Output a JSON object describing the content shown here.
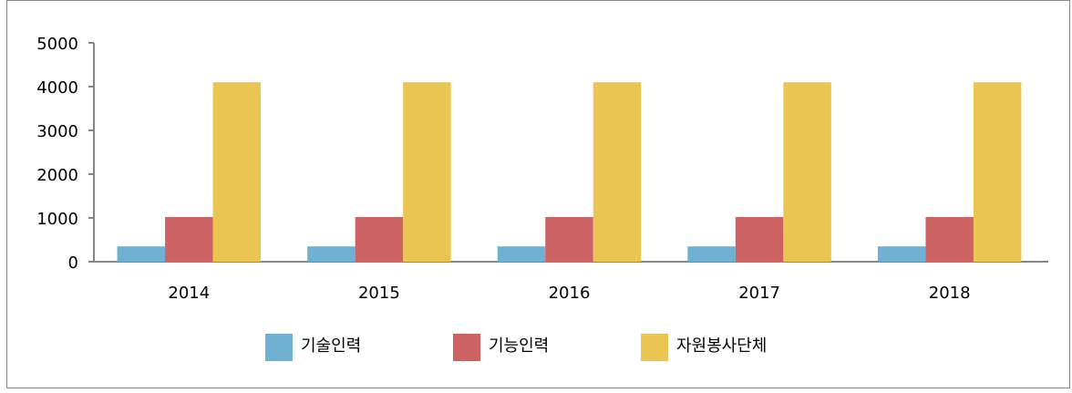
{
  "chart_data": {
    "type": "bar",
    "categories": [
      "2014",
      "2015",
      "2016",
      "2017",
      "2018"
    ],
    "series": [
      {
        "name": "기술인력",
        "color": "#6fb0d3",
        "values": [
          350,
          350,
          350,
          350,
          350
        ]
      },
      {
        "name": "기능인력",
        "color": "#cd6262",
        "values": [
          1020,
          1020,
          1020,
          1020,
          1020
        ]
      },
      {
        "name": "자원봉사단체",
        "color": "#ebc553",
        "values": [
          4100,
          4100,
          4100,
          4100,
          4100
        ]
      }
    ],
    "ylim": [
      0,
      5000
    ],
    "yticks": [
      0,
      1000,
      2000,
      3000,
      4000,
      5000
    ],
    "grid": false,
    "legend": "bottom"
  }
}
